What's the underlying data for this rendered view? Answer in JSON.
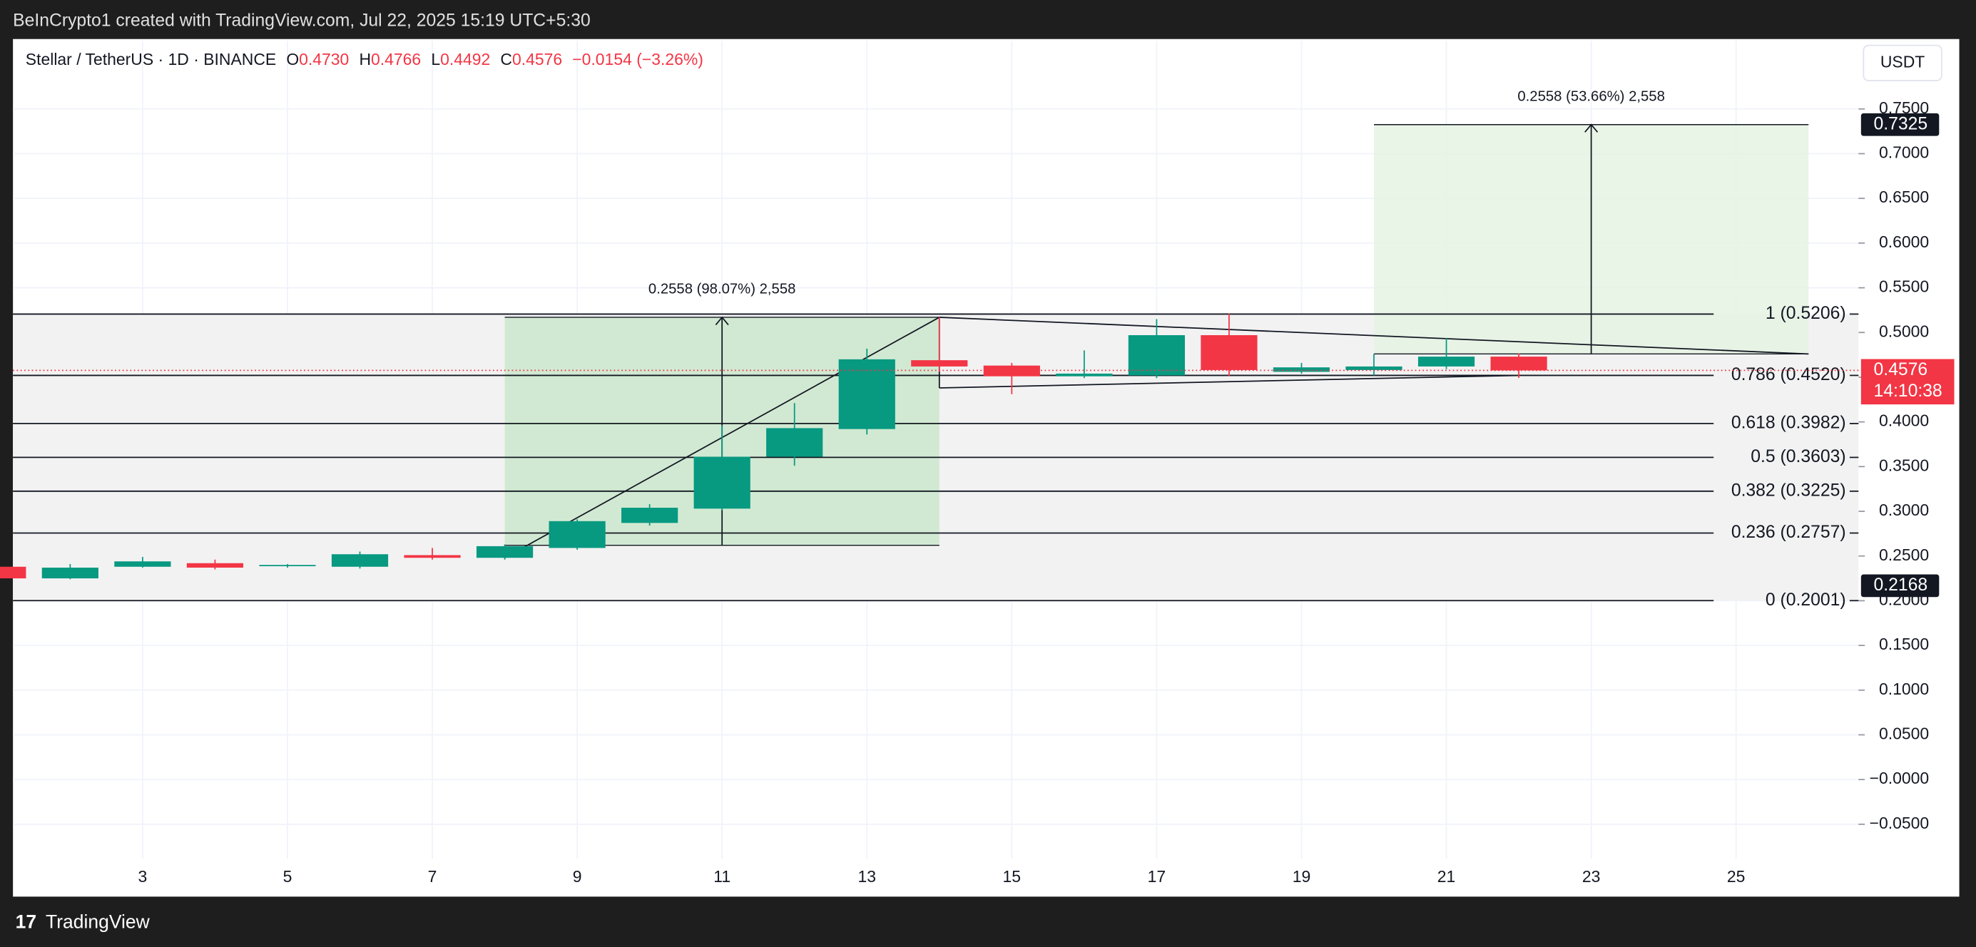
{
  "header": {
    "credit": "BeInCrypto1 created with TradingView.com, Jul 22, 2025 15:19 UTC+5:30",
    "symbol": "Stellar / TetherUS · 1D · BINANCE",
    "ohlc": [
      {
        "key": "O",
        "value": "0.4730"
      },
      {
        "key": "H",
        "value": "0.4766"
      },
      {
        "key": "L",
        "value": "0.4492"
      },
      {
        "key": "C",
        "value": "0.4576"
      }
    ],
    "change": "−0.0154 (−3.26%)",
    "currency": "USDT",
    "footer": "TradingView"
  },
  "chart_data": {
    "type": "candlestick",
    "x": [
      1,
      2,
      3,
      4,
      5,
      6,
      7,
      8,
      9,
      10,
      11,
      12,
      13,
      14,
      15,
      16,
      17,
      18,
      19,
      20,
      21,
      22
    ],
    "open": [
      0.238,
      0.225,
      0.238,
      0.242,
      0.239,
      0.238,
      0.251,
      0.248,
      0.259,
      0.287,
      0.303,
      0.361,
      0.392,
      0.469,
      0.463,
      0.451,
      0.452,
      0.497,
      0.456,
      0.458,
      0.462,
      0.473
    ],
    "high": [
      0.24,
      0.241,
      0.249,
      0.246,
      0.241,
      0.255,
      0.259,
      0.263,
      0.291,
      0.308,
      0.396,
      0.421,
      0.482,
      0.517,
      0.466,
      0.48,
      0.515,
      0.521,
      0.466,
      0.476,
      0.494,
      0.4766
    ],
    "low": [
      0.223,
      0.224,
      0.237,
      0.235,
      0.237,
      0.236,
      0.246,
      0.246,
      0.257,
      0.284,
      0.301,
      0.351,
      0.386,
      0.456,
      0.431,
      0.449,
      0.449,
      0.451,
      0.454,
      0.452,
      0.459,
      0.4492
    ],
    "close": [
      0.225,
      0.237,
      0.244,
      0.237,
      0.24,
      0.252,
      0.248,
      0.261,
      0.289,
      0.304,
      0.361,
      0.393,
      0.47,
      0.462,
      0.451,
      0.454,
      0.497,
      0.458,
      0.461,
      0.462,
      0.473,
      0.4576
    ],
    "up_color": "#089981",
    "down_color": "#f23645",
    "xlim": [
      1.21,
      26.69
    ],
    "ylim": [
      -0.0887,
      0.8268
    ],
    "xticks": [
      3,
      5,
      7,
      9,
      11,
      13,
      15,
      17,
      19,
      21,
      23,
      25
    ],
    "yticks": [
      {
        "value": 0.75,
        "label": "0.7500"
      },
      {
        "value": 0.7,
        "label": "0.7000"
      },
      {
        "value": 0.65,
        "label": "0.6500"
      },
      {
        "value": 0.6,
        "label": "0.6000"
      },
      {
        "value": 0.55,
        "label": "0.5500"
      },
      {
        "value": 0.5,
        "label": "0.5000"
      },
      {
        "value": 0.45,
        "label": "0.4500"
      },
      {
        "value": 0.4,
        "label": "0.4000"
      },
      {
        "value": 0.35,
        "label": "0.3500"
      },
      {
        "value": 0.3,
        "label": "0.3000"
      },
      {
        "value": 0.25,
        "label": "0.2500"
      },
      {
        "value": 0.2,
        "label": "0.2000"
      },
      {
        "value": 0.15,
        "label": "0.1500"
      },
      {
        "value": 0.1,
        "label": "0.1000"
      },
      {
        "value": 0.05,
        "label": "0.0500"
      },
      {
        "value": 0,
        "label": "−0.0000"
      },
      {
        "value": -0.05,
        "label": "−0.0500"
      }
    ],
    "grid": true,
    "fib_levels": [
      {
        "value": 0.5206,
        "label": "1 (0.5206)"
      },
      {
        "value": 0.452,
        "label": "0.786 (0.4520)"
      },
      {
        "value": 0.3982,
        "label": "0.618 (0.3982)"
      },
      {
        "value": 0.3603,
        "label": "0.5 (0.3603)"
      },
      {
        "value": 0.3225,
        "label": "0.382 (0.3225)"
      },
      {
        "value": 0.2757,
        "label": "0.236 (0.2757)"
      },
      {
        "value": 0.2001,
        "label": "0 (0.2001)"
      }
    ],
    "measures": [
      {
        "label": "0.2558 (98.07%) 2,558",
        "x_from": 8,
        "x_to": 14,
        "arrow_x": 11,
        "low": 0.262,
        "high": 0.517,
        "color": "#c8e6c9"
      },
      {
        "label": "0.2558 (53.66%) 2,558",
        "x_from": 20,
        "x_to": 26,
        "arrow_x": 23,
        "low": 0.476,
        "high": 0.7325,
        "color": "#e3f3e1"
      }
    ],
    "trendlines": [
      [
        [
          8,
          0.248
        ],
        [
          14,
          0.517
        ]
      ],
      [
        [
          14,
          0.517
        ],
        [
          26,
          0.476
        ]
      ],
      [
        [
          14,
          0.517
        ],
        [
          14,
          0.438
        ]
      ],
      [
        [
          14,
          0.438
        ],
        [
          22,
          0.452
        ]
      ]
    ],
    "price_tags": [
      {
        "value": 0.7325,
        "label": "0.7325",
        "color": "#131722"
      },
      {
        "value": 0.4576,
        "label": "0.4576",
        "countdown": "14:10:38",
        "color": "#f23645"
      },
      {
        "value": 0.2168,
        "label": "0.2168",
        "color": "#131722"
      }
    ]
  }
}
